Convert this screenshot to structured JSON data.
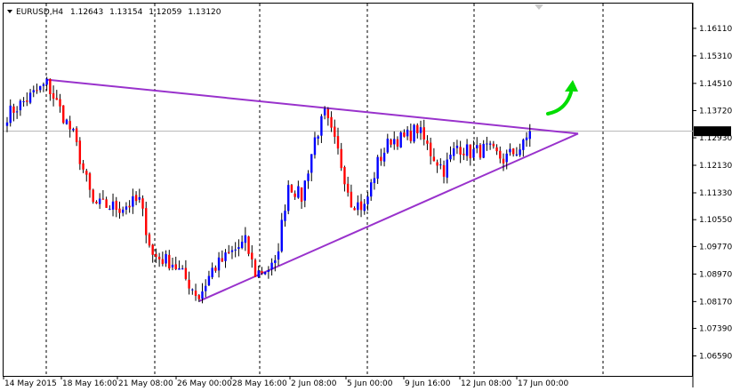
{
  "header": {
    "symbol": "EURUSD,H4",
    "open": "1.12643",
    "high": "1.13154",
    "low": "1.12059",
    "close": "1.13120"
  },
  "colors": {
    "bull": "#0000ff",
    "bear": "#ff0000",
    "wick": "#000000",
    "trendline": "#9932cc",
    "arrow": "#00dd00",
    "grid": "#000000",
    "price_line": "#b4b4b4",
    "badge_bg": "#000000",
    "badge_text": "#ffffff"
  },
  "chart_data": {
    "type": "candlestick",
    "title": "",
    "xlabel": "",
    "ylabel": "",
    "ylim": [
      1.0601,
      1.1683
    ],
    "grid": true,
    "y_ticks": [
      "1.16110",
      "1.15310",
      "1.14510",
      "1.13720",
      "1.12930",
      "1.12130",
      "1.11330",
      "1.10550",
      "1.09770",
      "1.08970",
      "1.08170",
      "1.07390",
      "1.06590"
    ],
    "x_ticks": [
      "14 May 2015",
      "18 May 16:00",
      "21 May 08:00",
      "26 May 00:00",
      "28 May 16:00",
      "2 Jun 08:00",
      "5 Jun 00:00",
      "9 Jun 16:00",
      "12 Jun 08:00",
      "17 Jun 00:00"
    ],
    "current_price": "1.13120",
    "trendlines": [
      {
        "from": {
          "bar": 12,
          "price": 1.1462
        },
        "to": {
          "bar": 161,
          "price": 1.1305
        }
      },
      {
        "from": {
          "bar": 58,
          "price": 1.0818
        },
        "to": {
          "bar": 161,
          "price": 1.1305
        }
      }
    ],
    "anchors": [
      {
        "bar": 0,
        "price": 1.136
      },
      {
        "bar": 12,
        "price": 1.145
      },
      {
        "bar": 20,
        "price": 1.13
      },
      {
        "bar": 26,
        "price": 1.11
      },
      {
        "bar": 34,
        "price": 1.109
      },
      {
        "bar": 40,
        "price": 1.111
      },
      {
        "bar": 44,
        "price": 1.095
      },
      {
        "bar": 50,
        "price": 1.093
      },
      {
        "bar": 55,
        "price": 1.087
      },
      {
        "bar": 58,
        "price": 1.083
      },
      {
        "bar": 62,
        "price": 1.091
      },
      {
        "bar": 68,
        "price": 1.096
      },
      {
        "bar": 72,
        "price": 1.099
      },
      {
        "bar": 75,
        "price": 1.09
      },
      {
        "bar": 81,
        "price": 1.092
      },
      {
        "bar": 85,
        "price": 1.116
      },
      {
        "bar": 89,
        "price": 1.112
      },
      {
        "bar": 93,
        "price": 1.129
      },
      {
        "bar": 96,
        "price": 1.136
      },
      {
        "bar": 100,
        "price": 1.125
      },
      {
        "bar": 104,
        "price": 1.111
      },
      {
        "bar": 108,
        "price": 1.109
      },
      {
        "bar": 112,
        "price": 1.122
      },
      {
        "bar": 116,
        "price": 1.129
      },
      {
        "bar": 120,
        "price": 1.129
      },
      {
        "bar": 124,
        "price": 1.132
      },
      {
        "bar": 128,
        "price": 1.125
      },
      {
        "bar": 132,
        "price": 1.12
      },
      {
        "bar": 136,
        "price": 1.127
      },
      {
        "bar": 140,
        "price": 1.125
      },
      {
        "bar": 145,
        "price": 1.126
      },
      {
        "bar": 150,
        "price": 1.123
      },
      {
        "bar": 156,
        "price": 1.127
      },
      {
        "bar": 158,
        "price": 1.1312
      }
    ]
  }
}
